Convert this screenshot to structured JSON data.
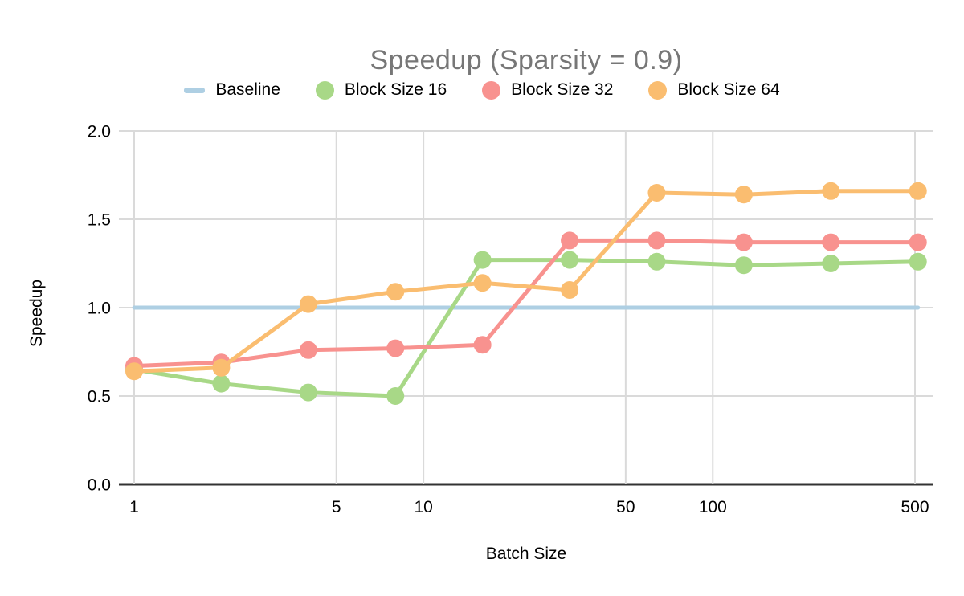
{
  "chart": {
    "title": "Speedup (Sparsity = 0.9)",
    "title_color": "#777777"
  },
  "chart_data": {
    "type": "line",
    "title": "Speedup (Sparsity = 0.9)",
    "xlabel": "Batch Size",
    "ylabel": "Speedup",
    "xscale": "log",
    "xlim": [
      1,
      512
    ],
    "ylim": [
      0,
      2
    ],
    "grid": true,
    "legend_position": "top",
    "xticks": [
      1,
      5,
      10,
      50,
      100,
      500
    ],
    "xtick_labels": [
      "1",
      "5",
      "10",
      "50",
      "100",
      "500"
    ],
    "yticks": [
      0,
      0.5,
      1.0,
      1.5,
      2.0
    ],
    "ytick_labels": [
      "0.0",
      "0.5",
      "1.0",
      "1.5",
      "2.0"
    ],
    "x": [
      1,
      2,
      4,
      8,
      16,
      32,
      64,
      128,
      256,
      512
    ],
    "series": [
      {
        "name": "Baseline",
        "color": "#AECFE3",
        "marker": false,
        "values": [
          1.0,
          1.0,
          1.0,
          1.0,
          1.0,
          1.0,
          1.0,
          1.0,
          1.0,
          1.0
        ]
      },
      {
        "name": "Block Size 16",
        "color": "#A8D887",
        "marker": true,
        "values": [
          0.65,
          0.57,
          0.52,
          0.5,
          1.27,
          1.27,
          1.26,
          1.24,
          1.25,
          1.26
        ]
      },
      {
        "name": "Block Size 32",
        "color": "#F8928F",
        "marker": true,
        "values": [
          0.67,
          0.69,
          0.76,
          0.77,
          0.79,
          1.38,
          1.38,
          1.37,
          1.37,
          1.37
        ]
      },
      {
        "name": "Block Size 64",
        "color": "#FABD70",
        "marker": true,
        "values": [
          0.64,
          0.66,
          1.02,
          1.09,
          1.14,
          1.1,
          1.65,
          1.64,
          1.66,
          1.66
        ]
      }
    ],
    "style": {
      "grid_color": "#DADADA",
      "axis_color": "#333333",
      "tick_label_color": "#000000"
    }
  }
}
